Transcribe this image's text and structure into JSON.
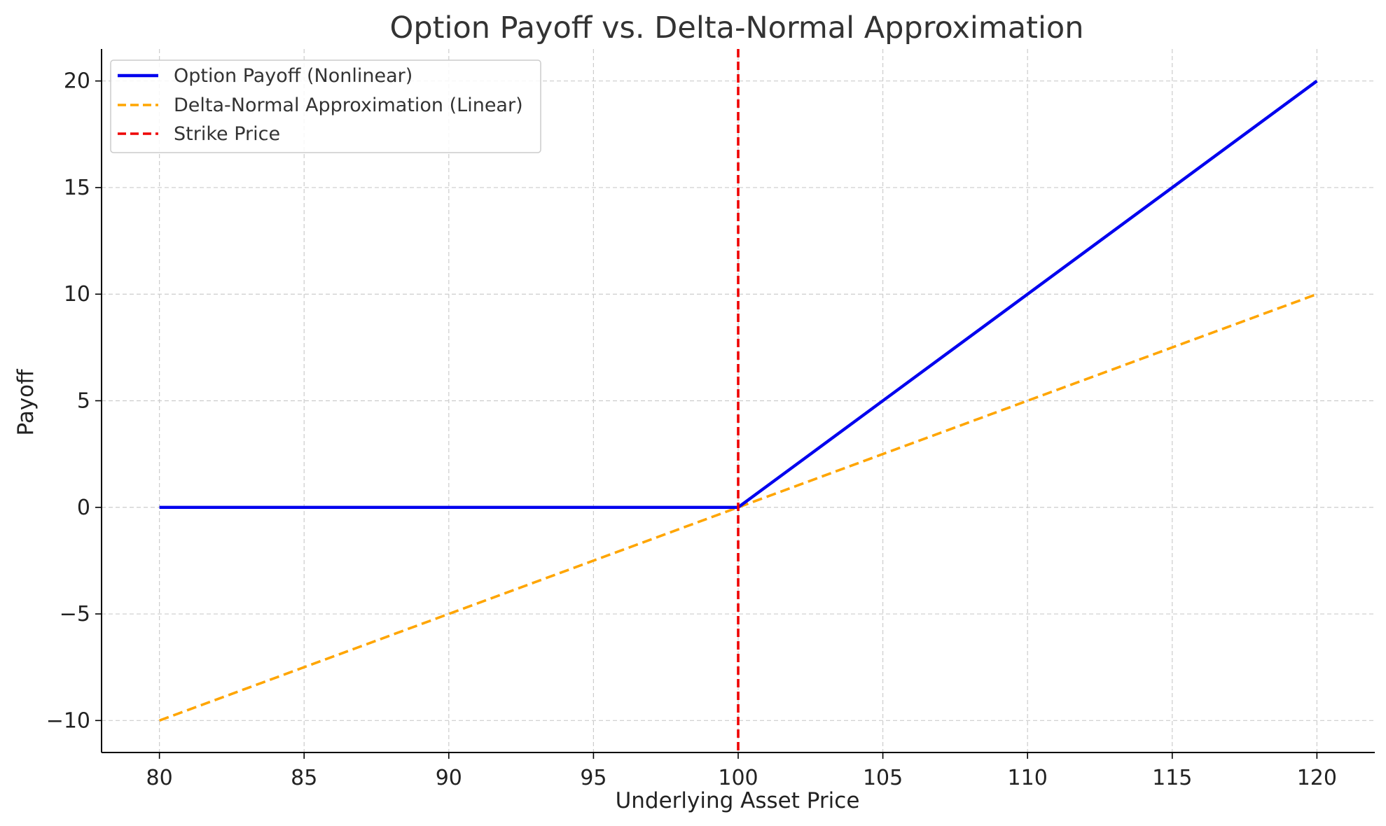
{
  "chart_data": {
    "type": "line",
    "title": "Option Payoff vs. Delta-Normal Approximation",
    "xlabel": "Underlying Asset Price",
    "ylabel": "Payoff",
    "xlim": [
      78,
      122
    ],
    "ylim": [
      -11.5,
      21.5
    ],
    "x_ticks": [
      80,
      85,
      90,
      95,
      100,
      105,
      110,
      115,
      120
    ],
    "y_ticks": [
      -10,
      -5,
      0,
      5,
      10,
      15,
      20
    ],
    "y_tick_labels": [
      "−10",
      "−5",
      "0",
      "5",
      "10",
      "15",
      "20"
    ],
    "grid": true,
    "legend_position": "top-left",
    "series": [
      {
        "name": "Option Payoff (Nonlinear)",
        "color": "#0000ee",
        "style": "solid",
        "x": [
          80,
          100,
          120
        ],
        "y": [
          0,
          0,
          20
        ]
      },
      {
        "name": "Delta-Normal Approximation (Linear)",
        "color": "#ffa500",
        "style": "dashed",
        "x": [
          80,
          120
        ],
        "y": [
          -10,
          10
        ]
      }
    ],
    "vlines": [
      {
        "name": "Strike Price",
        "x": 100,
        "color": "#ee0000",
        "style": "dashed"
      }
    ]
  }
}
